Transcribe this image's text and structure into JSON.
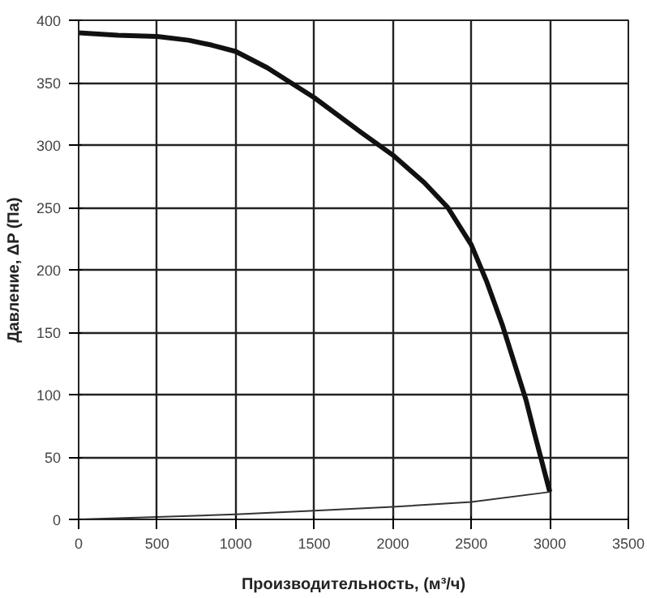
{
  "chart_data": {
    "type": "line",
    "xlabel": "Производительность, (м³/ч)",
    "ylabel": "Давление, ΔP (Па)",
    "xlim": [
      0,
      3500
    ],
    "ylim": [
      0,
      400
    ],
    "xticks": [
      0,
      500,
      1000,
      1500,
      2000,
      2500,
      3000,
      3500
    ],
    "yticks": [
      0,
      50,
      100,
      150,
      200,
      250,
      300,
      350,
      400
    ],
    "grid": true,
    "marker": "none",
    "line_style": "solid",
    "series": [
      {
        "color": "#111111",
        "x": [
          0,
          250,
          500,
          700,
          850,
          1000,
          1200,
          1500,
          1800,
          2000,
          2200,
          2350,
          2500,
          2600,
          2700,
          2800,
          2850,
          2900,
          3000
        ],
        "values": [
          390,
          388,
          387,
          384,
          380,
          375,
          362,
          338,
          310,
          292,
          270,
          250,
          220,
          190,
          155,
          115,
          95,
          70,
          22
        ]
      },
      {
        "color": "#333333",
        "x": [
          0,
          500,
          1000,
          1500,
          2000,
          2500,
          3000
        ],
        "values": [
          0,
          2,
          4,
          7,
          10,
          14,
          22
        ]
      }
    ]
  }
}
